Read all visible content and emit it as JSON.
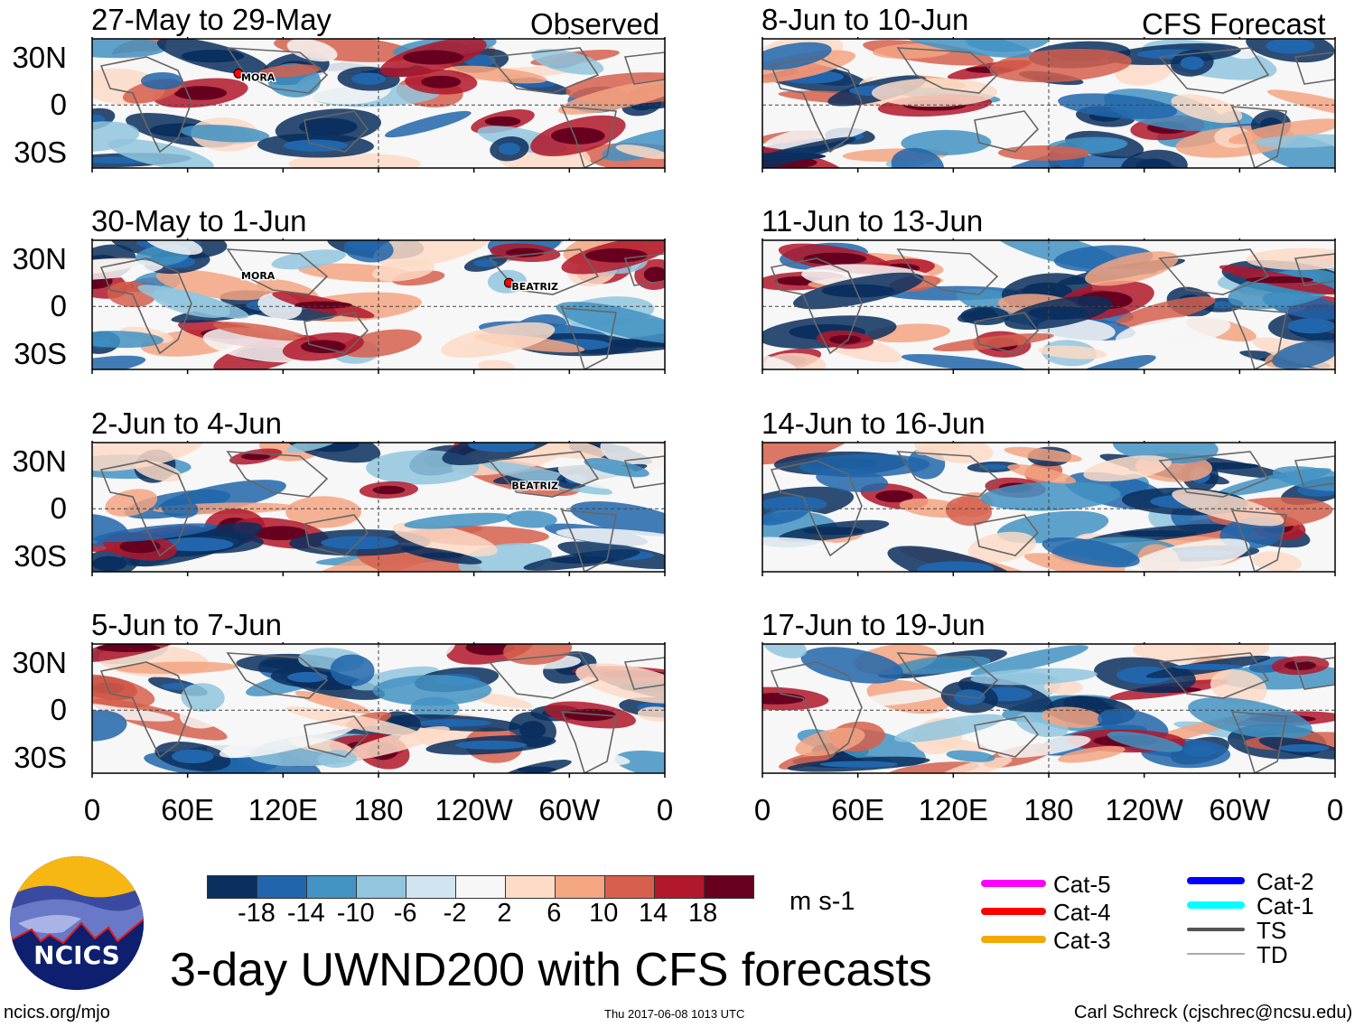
{
  "header": {
    "left_label": "Observed",
    "right_label": "CFS Forecast"
  },
  "panels": {
    "observed": [
      {
        "title": "27-May to 29-May",
        "storms": [
          {
            "name": "MORA",
            "lon": 92,
            "lat": 20
          }
        ]
      },
      {
        "title": "30-May to 1-Jun",
        "storms": [
          {
            "name": "MORA",
            "lon": 92,
            "lat": 22,
            "label_only": true
          },
          {
            "name": "BEATRIZ",
            "lon": 262,
            "lat": 15
          }
        ]
      },
      {
        "title": "2-Jun to 4-Jun",
        "storms": [
          {
            "name": "BEATRIZ",
            "lon": 262,
            "lat": 17,
            "label_only": true
          }
        ]
      },
      {
        "title": "5-Jun to 7-Jun",
        "storms": []
      }
    ],
    "forecast": [
      {
        "title": "8-Jun to 10-Jun",
        "storms": []
      },
      {
        "title": "11-Jun to 13-Jun",
        "storms": []
      },
      {
        "title": "14-Jun to 16-Jun",
        "storms": []
      },
      {
        "title": "17-Jun to 19-Jun",
        "storms": []
      }
    ]
  },
  "axes": {
    "lat_labels": [
      "30N",
      "0",
      "30S"
    ],
    "lon_labels": [
      "0",
      "60E",
      "120E",
      "180",
      "120W",
      "60W",
      "0"
    ]
  },
  "colorbar": {
    "colors": [
      "#0b2f5e",
      "#2166ac",
      "#4393c3",
      "#92c5de",
      "#d1e5f0",
      "#f7f7f7",
      "#fddbc7",
      "#f4a582",
      "#d6604d",
      "#b2182b",
      "#67001f"
    ],
    "labels": [
      "-18",
      "-14",
      "-10",
      "-6",
      "-2",
      "2",
      "6",
      "10",
      "14",
      "18"
    ],
    "units": "m s-1"
  },
  "legend": [
    {
      "label": "Cat-5",
      "color": "#ff00ff"
    },
    {
      "label": "Cat-4",
      "color": "#ff0000"
    },
    {
      "label": "Cat-3",
      "color": "#f5a800"
    },
    {
      "label": "Cat-2",
      "color": "#0000ff"
    },
    {
      "label": "Cat-1",
      "color": "#00ffff"
    },
    {
      "label": "TS",
      "color": "#555555"
    },
    {
      "label": "TD",
      "color": "#aaaaaa"
    }
  ],
  "main_title": "3-day UWND200 with CFS forecasts",
  "logo_text": "NCICS",
  "footer": {
    "url": "ncics.org/mjo",
    "timestamp": "Thu 2017-06-08 1013 UTC",
    "credit": "Carl Schreck (cjschrec@ncsu.edu)"
  }
}
